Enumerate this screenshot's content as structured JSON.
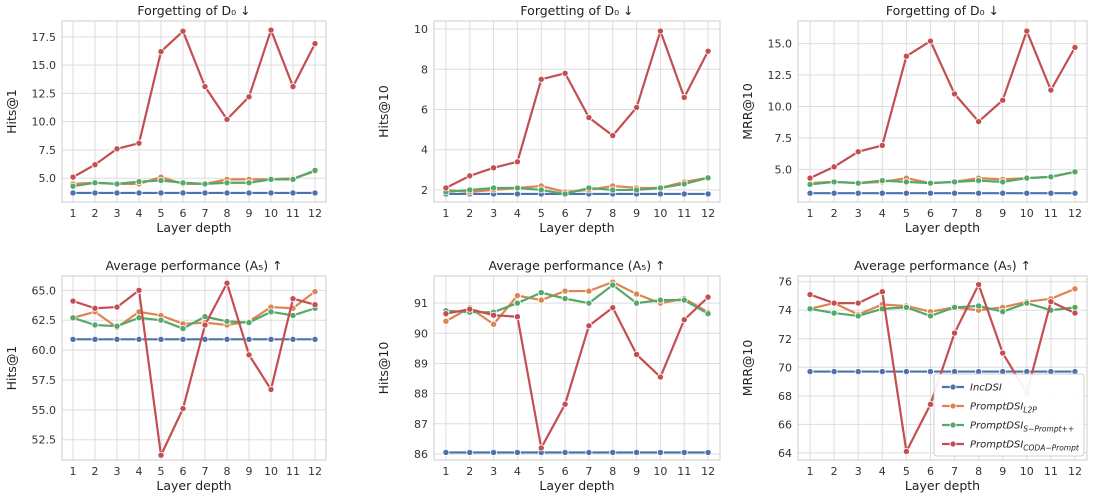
{
  "chart_data": [
    {
      "type": "line",
      "title": "Forgetting of D₀ ↓",
      "xlabel": "Layer depth",
      "ylabel": "Hits@1",
      "x": [
        1,
        2,
        3,
        4,
        5,
        6,
        7,
        8,
        9,
        10,
        11,
        12
      ],
      "ylim": [
        2.9,
        18.9
      ],
      "yticks": [
        "5.0",
        "7.5",
        "10.0",
        "12.5",
        "15.0",
        "17.5"
      ],
      "ytick_values": [
        5.0,
        7.5,
        10.0,
        12.5,
        15.0,
        17.5
      ],
      "series": [
        {
          "name": "IncDSI",
          "values": [
            3.7,
            3.7,
            3.7,
            3.7,
            3.7,
            3.7,
            3.7,
            3.7,
            3.7,
            3.7,
            3.7,
            3.7
          ]
        },
        {
          "name": "PromptDSI L2P",
          "values": [
            4.5,
            4.6,
            4.5,
            4.5,
            5.1,
            4.5,
            4.5,
            4.9,
            4.9,
            4.9,
            5.0,
            5.6
          ]
        },
        {
          "name": "PromptDSI S-Prompt++",
          "values": [
            4.3,
            4.6,
            4.5,
            4.7,
            4.8,
            4.6,
            4.5,
            4.6,
            4.6,
            4.9,
            4.9,
            5.7
          ]
        },
        {
          "name": "PromptDSI CODA-Prompt",
          "values": [
            5.1,
            6.2,
            7.6,
            8.1,
            16.2,
            18.0,
            13.1,
            10.2,
            12.2,
            18.1,
            13.1,
            16.9
          ]
        }
      ]
    },
    {
      "type": "line",
      "title": "Forgetting of D₀ ↓",
      "xlabel": "Layer depth",
      "ylabel": "Hits@10",
      "x": [
        1,
        2,
        3,
        4,
        5,
        6,
        7,
        8,
        9,
        10,
        11,
        12
      ],
      "ylim": [
        1.4,
        10.4
      ],
      "yticks": [
        "2",
        "4",
        "6",
        "8",
        "10"
      ],
      "ytick_values": [
        2,
        4,
        6,
        8,
        10
      ],
      "series": [
        {
          "name": "IncDSI",
          "values": [
            1.8,
            1.8,
            1.8,
            1.8,
            1.8,
            1.8,
            1.8,
            1.8,
            1.8,
            1.8,
            1.8,
            1.8
          ]
        },
        {
          "name": "PromptDSI L2P",
          "values": [
            2.0,
            1.9,
            2.0,
            2.1,
            2.2,
            1.9,
            2.0,
            2.2,
            2.1,
            2.1,
            2.4,
            2.6
          ]
        },
        {
          "name": "PromptDSI S-Prompt++",
          "values": [
            1.9,
            2.0,
            2.1,
            2.1,
            2.0,
            1.8,
            2.1,
            2.0,
            2.0,
            2.1,
            2.3,
            2.6
          ]
        },
        {
          "name": "PromptDSI CODA-Prompt",
          "values": [
            2.1,
            2.7,
            3.1,
            3.4,
            7.5,
            7.8,
            5.6,
            4.7,
            6.1,
            9.9,
            6.6,
            8.9
          ]
        }
      ]
    },
    {
      "type": "line",
      "title": "Forgetting of D₀ ↓",
      "xlabel": "Layer depth",
      "ylabel": "MRR@10",
      "x": [
        1,
        2,
        3,
        4,
        5,
        6,
        7,
        8,
        9,
        10,
        11,
        12
      ],
      "ylim": [
        2.4,
        16.8
      ],
      "yticks": [
        "5.0",
        "7.5",
        "10.0",
        "12.5",
        "15.0"
      ],
      "ytick_values": [
        5.0,
        7.5,
        10.0,
        12.5,
        15.0
      ],
      "series": [
        {
          "name": "IncDSI",
          "values": [
            3.1,
            3.1,
            3.1,
            3.1,
            3.1,
            3.1,
            3.1,
            3.1,
            3.1,
            3.1,
            3.1,
            3.1
          ]
        },
        {
          "name": "PromptDSI L2P",
          "values": [
            3.9,
            4.0,
            3.9,
            4.0,
            4.3,
            3.9,
            4.0,
            4.3,
            4.2,
            4.3,
            4.4,
            4.8
          ]
        },
        {
          "name": "PromptDSI S-Prompt++",
          "values": [
            3.8,
            4.0,
            3.9,
            4.1,
            4.0,
            3.9,
            4.0,
            4.1,
            4.0,
            4.3,
            4.4,
            4.8
          ]
        },
        {
          "name": "PromptDSI CODA-Prompt",
          "values": [
            4.3,
            5.2,
            6.4,
            6.9,
            14.0,
            15.2,
            11.0,
            8.8,
            10.5,
            16.0,
            11.3,
            14.7
          ]
        }
      ]
    },
    {
      "type": "line",
      "title": "Average performance (A₅) ↑",
      "xlabel": "Layer depth",
      "ylabel": "Hits@1",
      "x": [
        1,
        2,
        3,
        4,
        5,
        6,
        7,
        8,
        9,
        10,
        11,
        12
      ],
      "ylim": [
        50.8,
        66.2
      ],
      "yticks": [
        "52.5",
        "55.0",
        "57.5",
        "60.0",
        "62.5",
        "65.0"
      ],
      "ytick_values": [
        52.5,
        55.0,
        57.5,
        60.0,
        62.5,
        65.0
      ],
      "series": [
        {
          "name": "IncDSI",
          "values": [
            60.9,
            60.9,
            60.9,
            60.9,
            60.9,
            60.9,
            60.9,
            60.9,
            60.9,
            60.9,
            60.9,
            60.9
          ]
        },
        {
          "name": "PromptDSI L2P",
          "values": [
            62.7,
            63.2,
            61.9,
            63.2,
            62.9,
            62.2,
            62.3,
            62.1,
            62.4,
            63.6,
            63.5,
            64.9
          ]
        },
        {
          "name": "PromptDSI S-Prompt++",
          "values": [
            62.7,
            62.1,
            62.0,
            62.7,
            62.5,
            61.8,
            62.8,
            62.4,
            62.3,
            63.2,
            62.9,
            63.5
          ]
        },
        {
          "name": "PromptDSI CODA-Prompt",
          "values": [
            64.1,
            63.5,
            63.6,
            65.0,
            51.2,
            55.1,
            62.1,
            65.6,
            59.6,
            56.7,
            64.3,
            63.8
          ]
        }
      ]
    },
    {
      "type": "line",
      "title": "Average performance (A₅) ↑",
      "xlabel": "Layer depth",
      "ylabel": "Hits@10",
      "x": [
        1,
        2,
        3,
        4,
        5,
        6,
        7,
        8,
        9,
        10,
        11,
        12
      ],
      "ylim": [
        85.8,
        91.9
      ],
      "yticks": [
        "86",
        "87",
        "88",
        "89",
        "90",
        "91"
      ],
      "ytick_values": [
        86,
        87,
        88,
        89,
        90,
        91
      ],
      "series": [
        {
          "name": "IncDSI",
          "values": [
            86.05,
            86.05,
            86.05,
            86.05,
            86.05,
            86.05,
            86.05,
            86.05,
            86.05,
            86.05,
            86.05,
            86.05
          ]
        },
        {
          "name": "PromptDSI L2P",
          "values": [
            90.4,
            90.85,
            90.3,
            91.25,
            91.1,
            91.4,
            91.4,
            91.7,
            91.3,
            91.0,
            91.15,
            90.7
          ]
        },
        {
          "name": "PromptDSI S-Prompt++",
          "values": [
            90.75,
            90.7,
            90.7,
            91.0,
            91.35,
            91.15,
            91.0,
            91.6,
            91.0,
            91.1,
            91.1,
            90.65
          ]
        },
        {
          "name": "PromptDSI CODA-Prompt",
          "values": [
            90.65,
            90.8,
            90.6,
            90.55,
            86.2,
            87.65,
            90.25,
            90.85,
            89.3,
            88.55,
            90.45,
            91.2
          ]
        }
      ]
    },
    {
      "type": "line",
      "title": "Average performance (A₅) ↑",
      "xlabel": "Layer depth",
      "ylabel": "MRR@10",
      "x": [
        1,
        2,
        3,
        4,
        5,
        6,
        7,
        8,
        9,
        10,
        11,
        12
      ],
      "ylim": [
        63.5,
        76.4
      ],
      "yticks": [
        "64",
        "66",
        "68",
        "70",
        "72",
        "74",
        "76"
      ],
      "ytick_values": [
        64,
        66,
        68,
        70,
        72,
        74,
        76
      ],
      "series": [
        {
          "name": "IncDSI",
          "values": [
            69.7,
            69.7,
            69.7,
            69.7,
            69.7,
            69.7,
            69.7,
            69.7,
            69.7,
            69.7,
            69.7,
            69.7
          ]
        },
        {
          "name": "PromptDSI L2P",
          "values": [
            74.1,
            74.5,
            73.7,
            74.4,
            74.3,
            73.9,
            74.2,
            74.0,
            74.2,
            74.6,
            74.8,
            75.5
          ]
        },
        {
          "name": "PromptDSI S-Prompt++",
          "values": [
            74.1,
            73.8,
            73.6,
            74.1,
            74.2,
            73.6,
            74.2,
            74.3,
            73.9,
            74.5,
            74.0,
            74.2
          ]
        },
        {
          "name": "PromptDSI CODA-Prompt",
          "values": [
            75.1,
            74.5,
            74.5,
            75.3,
            64.1,
            67.4,
            72.4,
            75.8,
            71.0,
            68.2,
            74.6,
            73.8
          ]
        }
      ]
    }
  ],
  "colors": {
    "IncDSI": "#4c72b0",
    "PromptDSI L2P": "#dd8452",
    "PromptDSI S-Prompt++": "#55a868",
    "PromptDSI CODA-Prompt": "#c44e52"
  },
  "legend": {
    "placement": "lower-right of bottom-right panel",
    "items": [
      {
        "base": "IncDSI",
        "sub": ""
      },
      {
        "base": "PromptDSI",
        "sub": "L2P"
      },
      {
        "base": "PromptDSI",
        "sub": "S−Prompt++"
      },
      {
        "base": "PromptDSI",
        "sub": "CODA−Prompt"
      }
    ]
  },
  "grid": true
}
